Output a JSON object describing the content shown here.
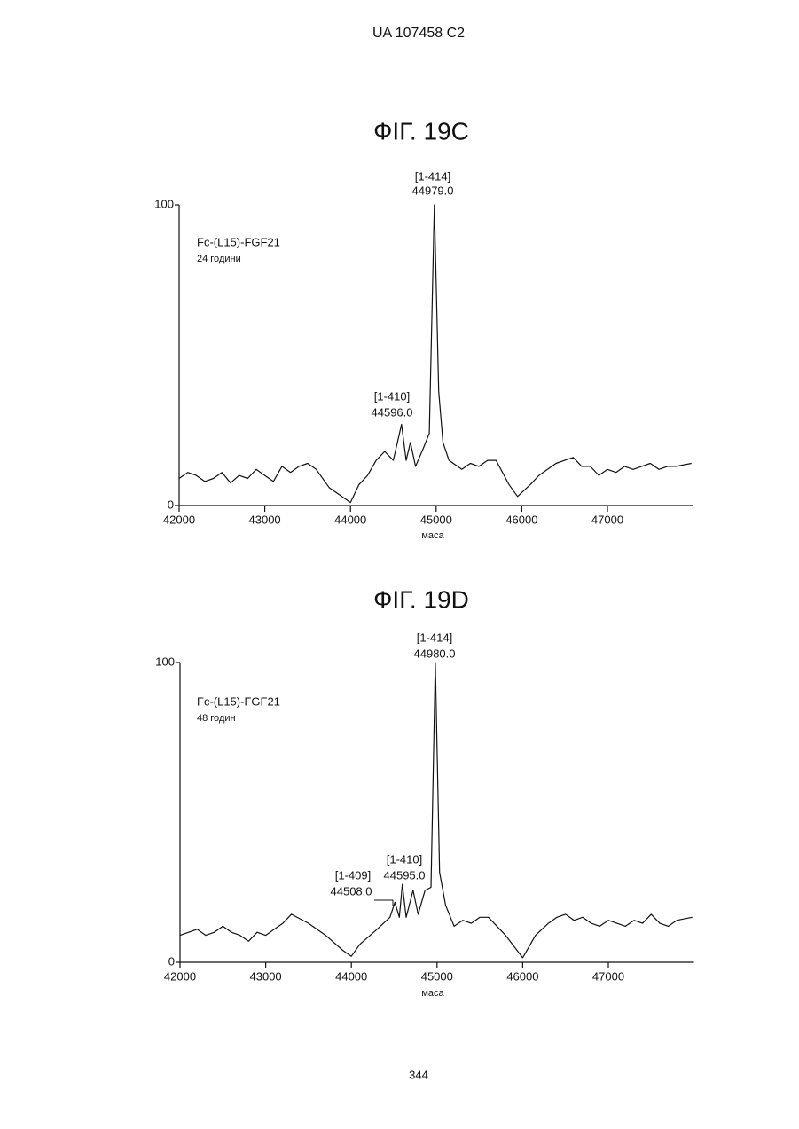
{
  "header": "UA 107458 C2",
  "page_number": "344",
  "chart_data": [
    {
      "type": "line",
      "title": "ФІГ. 19C",
      "label": "Fc-(L15)-FGF21",
      "note": "24 години",
      "x_label": "маса",
      "annotations": [
        "[1-414]",
        "44979.0",
        "[1-410]",
        "44596.0"
      ],
      "xlim": [
        42000,
        48000
      ],
      "ylim": [
        0,
        100
      ],
      "xticks": [
        42000,
        43000,
        44000,
        45000,
        46000,
        47000
      ],
      "yticks": [
        0,
        100
      ],
      "series": [
        {
          "color": "#111111",
          "x": [
            42000,
            42100,
            42200,
            42300,
            42400,
            42500,
            42600,
            42700,
            42800,
            42900,
            43000,
            43100,
            43200,
            43300,
            43400,
            43500,
            43600,
            43750,
            43900,
            44000,
            44100,
            44200,
            44300,
            44400,
            44500,
            44596,
            44650,
            44700,
            44760,
            44850,
            44920,
            44979,
            45030,
            45080,
            45150,
            45300,
            45400,
            45500,
            45600,
            45700,
            45850,
            45950,
            46100,
            46200,
            46300,
            46400,
            46500,
            46600,
            46700,
            46800,
            46900,
            47000,
            47100,
            47200,
            47300,
            47400,
            47500,
            47600,
            47700,
            47800,
            47980
          ],
          "values": [
            9,
            11,
            10,
            8,
            9,
            11,
            7.5,
            10,
            9,
            12,
            10,
            8,
            13,
            11,
            13,
            14,
            12,
            6,
            3,
            1,
            7,
            10,
            15,
            18,
            15,
            27,
            15,
            21,
            13,
            19,
            24,
            100,
            38,
            21,
            15,
            12,
            14,
            13,
            15,
            15,
            7,
            3,
            7,
            10,
            12,
            14,
            15,
            16,
            13,
            13,
            10,
            12,
            11,
            13,
            12,
            13,
            14,
            12,
            13,
            13,
            14
          ]
        }
      ]
    },
    {
      "type": "line",
      "title": "ФІГ. 19D",
      "label": "Fc-(L15)-FGF21",
      "note": "48 годин",
      "x_label": "маса",
      "annotations": [
        "[1-414]",
        "44980.0",
        "[1-410]",
        "44595.0",
        "[1-409]",
        "44508.0"
      ],
      "xlim": [
        42000,
        48000
      ],
      "ylim": [
        0,
        100
      ],
      "xticks": [
        42000,
        43000,
        44000,
        45000,
        46000,
        47000
      ],
      "yticks": [
        0,
        100
      ],
      "series": [
        {
          "color": "#111111",
          "x": [
            42000,
            42100,
            42200,
            42300,
            42400,
            42500,
            42600,
            42700,
            42800,
            42900,
            43000,
            43100,
            43200,
            43300,
            43500,
            43700,
            43900,
            44000,
            44100,
            44300,
            44450,
            44508,
            44560,
            44595,
            44640,
            44720,
            44780,
            44860,
            44930,
            44980,
            45030,
            45100,
            45200,
            45300,
            45400,
            45500,
            45600,
            45700,
            45800,
            46000,
            46150,
            46300,
            46400,
            46500,
            46600,
            46700,
            46800,
            46900,
            47000,
            47100,
            47200,
            47300,
            47400,
            47500,
            47600,
            47700,
            47800,
            47980
          ],
          "values": [
            9,
            10,
            11,
            9,
            10,
            12,
            10,
            9,
            7,
            10,
            9,
            11,
            13,
            16,
            13,
            9,
            4,
            2,
            6,
            11,
            15,
            20,
            15,
            26,
            15,
            24,
            16,
            24,
            25,
            100,
            30,
            19,
            12,
            14,
            13,
            15,
            15,
            12,
            9,
            1.5,
            9,
            13,
            15,
            16,
            14,
            15,
            13,
            12,
            14,
            13,
            12,
            14,
            13,
            16,
            13,
            12,
            14,
            15
          ]
        }
      ]
    }
  ]
}
